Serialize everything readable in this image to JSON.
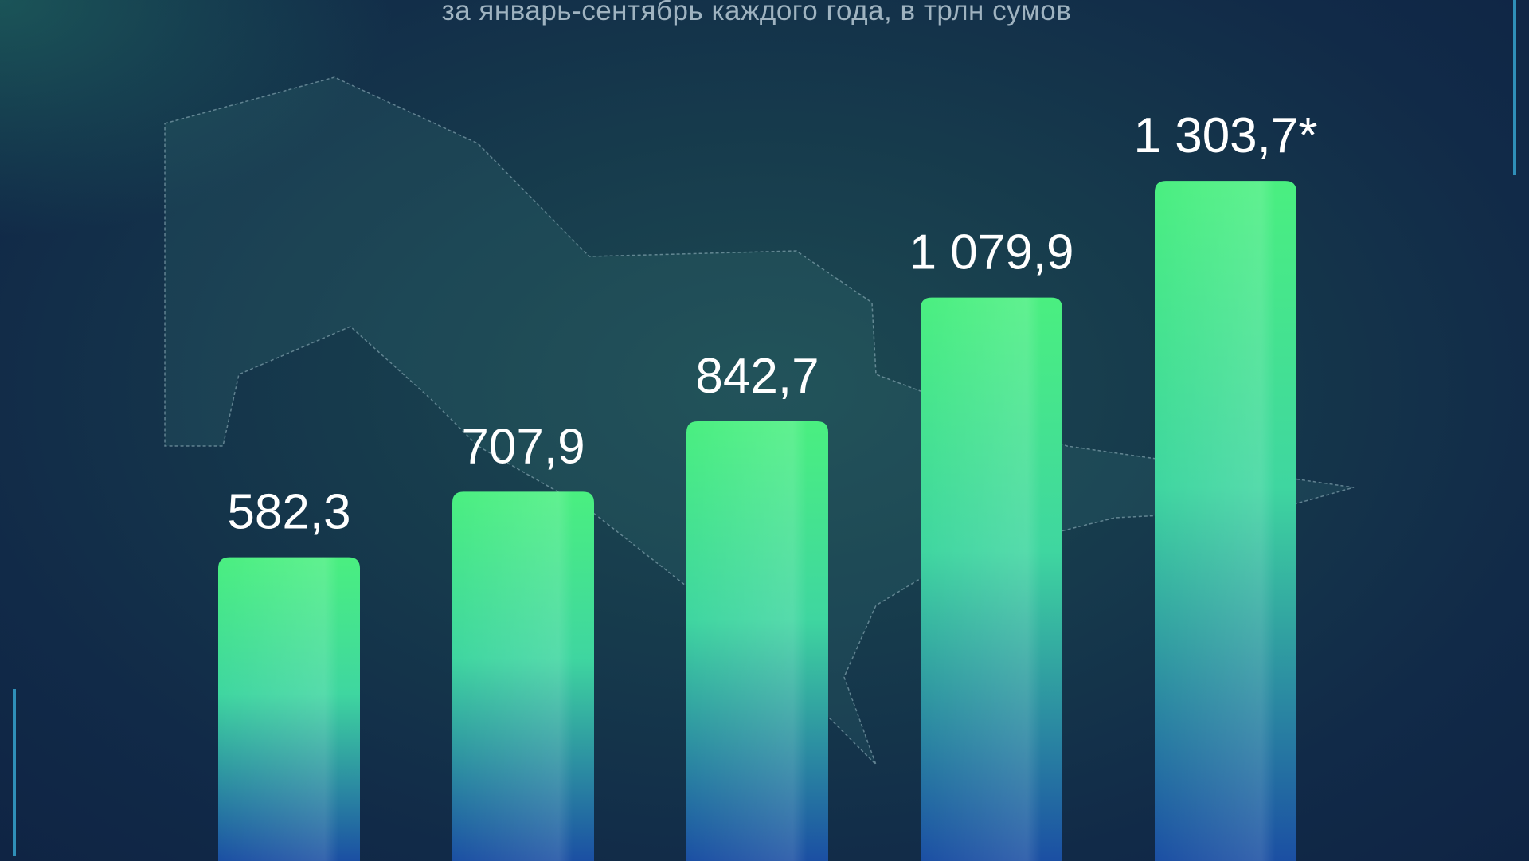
{
  "subtitle": "за январь-сентябрь каждого года, в трлн сумов",
  "chart_data": {
    "type": "bar",
    "title": "",
    "subtitle": "за январь-сентябрь каждого года, в трлн сумов",
    "categories": [],
    "values": [
      582.3,
      707.9,
      842.7,
      1079.9,
      1303.7
    ],
    "labels": [
      "582,3",
      "707,9",
      "842,7",
      "1 079,9",
      "1 303,7*"
    ],
    "xlabel": "",
    "ylabel": "",
    "ylim": [
      0,
      1400
    ],
    "grid": false,
    "colors": {
      "bar_top": "#4aef7c",
      "bar_bottom": "#1a4fa0",
      "background": "#133349"
    }
  }
}
